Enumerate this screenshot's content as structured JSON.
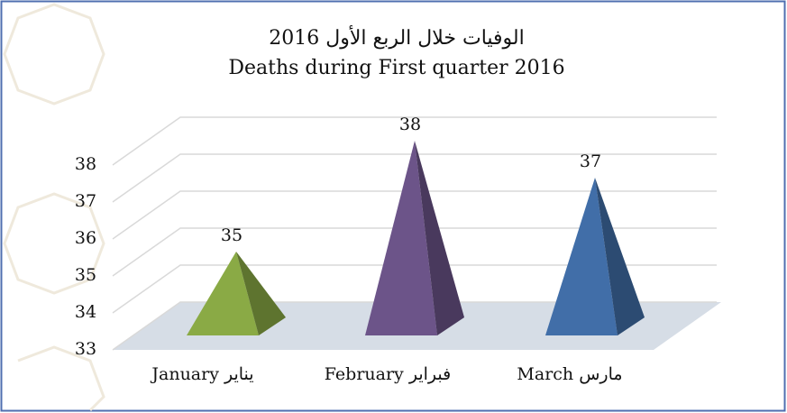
{
  "chart_data": {
    "type": "pyramid",
    "title": "الوفيات خلال الربع الأول 2016",
    "subtitle": "Deaths during First quarter 2016",
    "categories": [
      "January يناير",
      "February فبراير",
      "March مارس"
    ],
    "values": [
      35,
      38,
      37
    ],
    "colors": [
      "#8aaa45",
      "#6c5489",
      "#416ea8"
    ],
    "ylim": [
      33,
      38
    ],
    "yticks": [
      33,
      34,
      35,
      36,
      37,
      38
    ],
    "grid": true
  }
}
